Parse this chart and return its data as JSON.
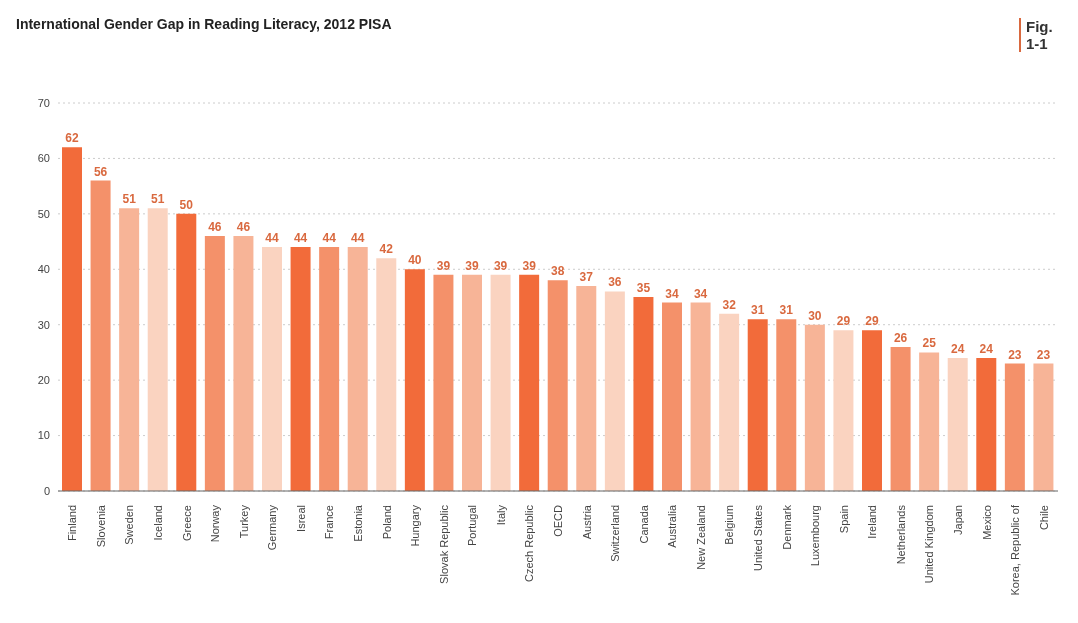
{
  "chart_data": {
    "type": "bar",
    "title": "International Gender Gap in Reading Literacy, 2012 PISA",
    "annotations": [
      "Fig. 1-1"
    ],
    "categories": [
      "Finland",
      "Slovenia",
      "Sweden",
      "Iceland",
      "Greece",
      "Norway",
      "Turkey",
      "Germany",
      "Isreal",
      "France",
      "Estonia",
      "Poland",
      "Hungary",
      "Slovak Republic",
      "Portugal",
      "Italy",
      "Czech Republic",
      "OECD",
      "Austria",
      "Switzerland",
      "Canada",
      "Australia",
      "New Zealand",
      "Belgium",
      "United States",
      "Denmark",
      "Luxembourg",
      "Spain",
      "Ireland",
      "Netherlands",
      "United Kingdom",
      "Japan",
      "Mexico",
      "Korea, Republic of",
      "Chile"
    ],
    "values": [
      62,
      56,
      51,
      51,
      50,
      46,
      46,
      44,
      44,
      44,
      44,
      42,
      40,
      39,
      39,
      39,
      39,
      38,
      37,
      36,
      35,
      34,
      34,
      32,
      31,
      31,
      30,
      29,
      29,
      26,
      25,
      24,
      24,
      23,
      23
    ],
    "colors": [
      "#f26b3a",
      "#f4916a",
      "#f7b497",
      "#fad3c0",
      "#f26b3a",
      "#f4916a",
      "#f7b497",
      "#fad3c0",
      "#f26b3a",
      "#f4916a",
      "#f7b497",
      "#fad3c0",
      "#f26b3a",
      "#f4916a",
      "#f7b497",
      "#fad3c0",
      "#f26b3a",
      "#f4916a",
      "#f7b497",
      "#fad3c0",
      "#f26b3a",
      "#f4916a",
      "#f7b497",
      "#fad3c0",
      "#f26b3a",
      "#f4916a",
      "#f7b497",
      "#fad3c0",
      "#f26b3a",
      "#f4916a",
      "#f7b497",
      "#fad3c0",
      "#f26b3a",
      "#f4916a",
      "#f7b497"
    ],
    "data_labels": true,
    "ylim": [
      0,
      70
    ],
    "yticks": [
      0,
      10,
      20,
      30,
      40,
      50,
      60,
      70
    ],
    "grid": "y"
  }
}
